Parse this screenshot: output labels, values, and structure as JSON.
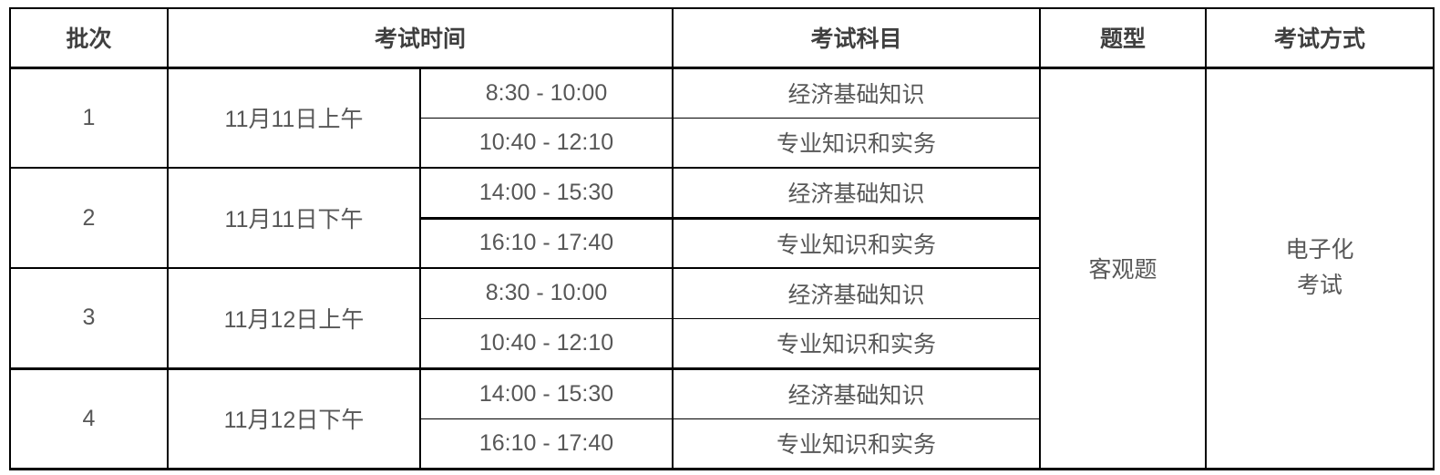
{
  "table": {
    "headers": {
      "batch": "批次",
      "time": "考试时间",
      "subject": "考试科目",
      "question_type": "题型",
      "method": "考试方式"
    },
    "batches": [
      {
        "no": "1",
        "date": "11月11日上午",
        "sessions": [
          {
            "time": "8:30 - 10:00",
            "subject": "经济基础知识"
          },
          {
            "time": "10:40 - 12:10",
            "subject": "专业知识和实务"
          }
        ]
      },
      {
        "no": "2",
        "date": "11月11日下午",
        "sessions": [
          {
            "time": "14:00 - 15:30",
            "subject": "经济基础知识"
          },
          {
            "time": "16:10 - 17:40",
            "subject": "专业知识和实务"
          }
        ]
      },
      {
        "no": "3",
        "date": "11月12日上午",
        "sessions": [
          {
            "time": "8:30 - 10:00",
            "subject": "经济基础知识"
          },
          {
            "time": "10:40 - 12:10",
            "subject": "专业知识和实务"
          }
        ]
      },
      {
        "no": "4",
        "date": "11月12日下午",
        "sessions": [
          {
            "time": "14:00 - 15:30",
            "subject": "经济基础知识"
          },
          {
            "time": "16:10 - 17:40",
            "subject": "专业知识和实务"
          }
        ]
      }
    ],
    "question_type": "客观题",
    "method": "电子化\n考试"
  },
  "colors": {
    "border": "#000000",
    "header_text": "#3f3f3f",
    "body_text": "#575757",
    "background": "#ffffff"
  }
}
